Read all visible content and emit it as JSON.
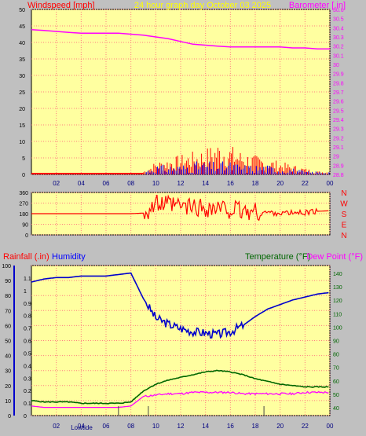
{
  "title": "24 hour graph day   October 03 2025",
  "colors": {
    "background": "#c0c0c0",
    "plot_bg": "#ffffa0",
    "grid": "#ff8080",
    "wind": "#ff0000",
    "gust": "#0000ff",
    "barometer": "#ff00ff",
    "rain": "#ff0000",
    "humidity": "#0000cc",
    "temperature": "#006600",
    "dewpoint": "#ff00ff",
    "title": "#ffff00",
    "time_label": "#000080"
  },
  "x_ticks": [
    "02",
    "04",
    "06",
    "08",
    "10",
    "12",
    "14",
    "16",
    "18",
    "20",
    "22",
    "00"
  ],
  "chart_data": [
    {
      "type": "line",
      "title": "24 hour graph day   October 03 2025",
      "ylabel": "Windspeed [mph]",
      "y2label": "Barometer [.in]",
      "ylim": [
        0,
        50
      ],
      "y2lim": [
        28.8,
        30.6
      ],
      "yticks": [
        "0",
        "5",
        "10",
        "15",
        "20",
        "25",
        "30",
        "35",
        "40",
        "45",
        "50"
      ],
      "y2ticks": [
        "28.8",
        "28.9",
        "29",
        "29.1",
        "29.2",
        "29.3",
        "29.4",
        "29.5",
        "29.6",
        "29.7",
        "29.8",
        "29.9",
        "30",
        "30.1",
        "30.2",
        "30.3",
        "30.4",
        "30.5",
        "30.6"
      ],
      "x_hours": [
        0,
        1,
        2,
        3,
        4,
        5,
        6,
        7,
        8,
        9,
        10,
        11,
        12,
        13,
        14,
        15,
        16,
        17,
        18,
        19,
        20,
        21,
        22,
        23,
        24
      ],
      "barometer": [
        30.38,
        30.37,
        30.36,
        30.35,
        30.34,
        30.34,
        30.34,
        30.34,
        30.33,
        30.32,
        30.3,
        30.28,
        30.25,
        30.22,
        30.21,
        30.2,
        30.19,
        30.19,
        30.19,
        30.19,
        30.19,
        30.18,
        30.18,
        30.17,
        30.17
      ],
      "windspeed_peak": [
        0,
        0,
        0,
        0,
        0,
        0,
        0,
        0,
        0,
        1,
        4,
        5,
        6,
        7,
        8,
        10,
        9,
        7,
        6,
        5,
        4,
        3,
        2,
        1,
        1
      ],
      "gust_peak": [
        0,
        0,
        0,
        0,
        0,
        0,
        0,
        0,
        0,
        1,
        3,
        3,
        3,
        4,
        4,
        4,
        4,
        3,
        3,
        3,
        2,
        2,
        1,
        1,
        1
      ],
      "grid": true
    },
    {
      "type": "line",
      "ylabel": "Wind direction",
      "yticks": [
        "0",
        "90",
        "180",
        "270",
        "360"
      ],
      "ylim": [
        0,
        360
      ],
      "compass": [
        "N",
        "W",
        "S",
        "E",
        "N"
      ],
      "x_hours": [
        0,
        1,
        2,
        3,
        4,
        5,
        6,
        7,
        8,
        9,
        10,
        11,
        12,
        13,
        14,
        15,
        16,
        17,
        18,
        19,
        20,
        21,
        22,
        23,
        24
      ],
      "direction": [
        180,
        180,
        180,
        180,
        180,
        180,
        180,
        180,
        180,
        185,
        260,
        250,
        240,
        235,
        230,
        220,
        215,
        200,
        195,
        190,
        185,
        185,
        190,
        200,
        205
      ],
      "grid": true
    },
    {
      "type": "line",
      "ylabel": "Rainfall (.in)",
      "ylabel2": "Humidity",
      "y2label": "Temperature (°F)",
      "y2label2": "Dew Point (°F)",
      "ylim_humidity": [
        0,
        100
      ],
      "ylim_rain": [
        0,
        1.2
      ],
      "y2lim": [
        35,
        145
      ],
      "humidity_ticks": [
        "0",
        "10",
        "20",
        "30",
        "40",
        "50",
        "60",
        "70",
        "80",
        "90",
        "100"
      ],
      "rain_ticks": [
        "0",
        "0.1",
        "0.2",
        "0.3",
        "0.4",
        "0.5",
        "0.6",
        "0.7",
        "0.8",
        "0.9",
        "1",
        "1.1"
      ],
      "temp_ticks": [
        "40",
        "50",
        "60",
        "70",
        "80",
        "90",
        "100",
        "110",
        "120",
        "130",
        "140"
      ],
      "x_hours": [
        0,
        1,
        2,
        3,
        4,
        5,
        6,
        7,
        8,
        9,
        10,
        11,
        12,
        13,
        14,
        15,
        16,
        17,
        18,
        19,
        20,
        21,
        22,
        23,
        24
      ],
      "humidity": [
        89,
        91,
        92,
        92,
        93,
        93,
        93,
        94,
        95,
        78,
        65,
        61,
        58,
        56,
        55,
        54,
        56,
        60,
        66,
        71,
        74,
        77,
        79,
        81,
        82
      ],
      "temperature": [
        46,
        45,
        45,
        45,
        44,
        44,
        44,
        44,
        45,
        53,
        58,
        61,
        63,
        65,
        67,
        68,
        67,
        65,
        62,
        60,
        58,
        57,
        56,
        56,
        56
      ],
      "dewpoint": [
        42,
        41,
        41,
        41,
        41,
        41,
        41,
        41,
        42,
        49,
        50,
        51,
        51,
        52,
        52,
        52,
        52,
        51,
        51,
        51,
        51,
        51,
        52,
        52,
        52
      ],
      "rainfall": [
        0,
        0,
        0,
        0,
        0,
        0,
        0,
        0,
        0,
        0,
        0,
        0,
        0,
        0,
        0,
        0,
        0,
        0,
        0,
        0,
        0,
        0,
        0,
        0,
        0
      ],
      "grid": true
    }
  ],
  "footer_label": "Lowtide"
}
